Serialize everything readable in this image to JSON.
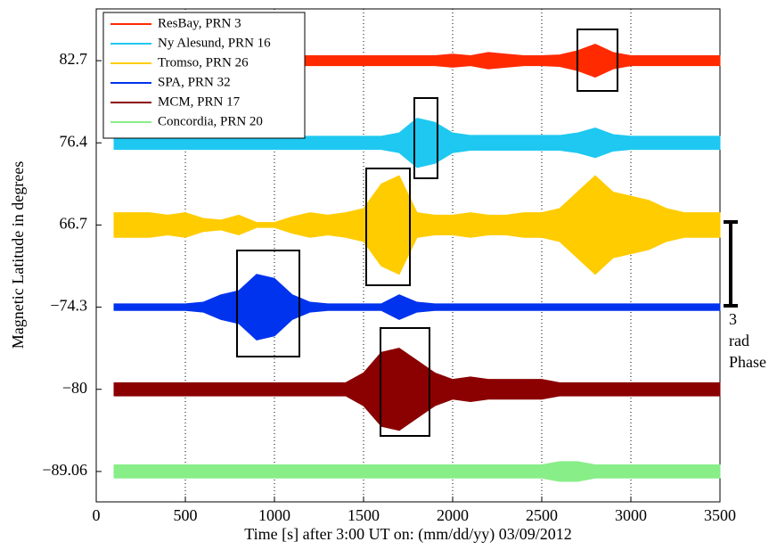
{
  "chart_data": {
    "type": "envelope",
    "xlabel": "Time [s] after 3:00 UT on: (mm/dd/yy) 03/09/2012",
    "ylabel": "Magnetic Latitude in degrees",
    "scale_bar_label": [
      "3",
      "rad",
      "Phase"
    ],
    "legend": "upper left",
    "xlim": [
      0,
      3500
    ],
    "xticks": [
      0,
      500,
      1000,
      1500,
      2000,
      2500,
      3000,
      3500
    ],
    "ylim": [
      0,
      6
    ],
    "yticks": [
      {
        "value": 0.37,
        "label": "−89.06"
      },
      {
        "value": 1.37,
        "label": "−80"
      },
      {
        "value": 2.37,
        "label": "−74.3"
      },
      {
        "value": 3.37,
        "label": "66.7"
      },
      {
        "value": 4.37,
        "label": "76.4"
      },
      {
        "value": 5.37,
        "label": "82.7"
      }
    ],
    "x": [
      100,
      200,
      300,
      400,
      500,
      600,
      700,
      800,
      900,
      1000,
      1100,
      1200,
      1300,
      1400,
      1500,
      1600,
      1700,
      1800,
      1900,
      2000,
      2100,
      2200,
      2300,
      2400,
      2500,
      2600,
      2700,
      2800,
      2900,
      3000,
      3100,
      3200,
      3300,
      3400,
      3500
    ],
    "series": [
      {
        "name": "ResBay, PRN 3",
        "color": "#ff2a00",
        "baseline": 5.37,
        "values": [
          0.05,
          0.05,
          0.05,
          0.05,
          0.05,
          0.05,
          0.05,
          0.05,
          0.05,
          0.05,
          0.06,
          0.06,
          0.06,
          0.06,
          0.06,
          0.06,
          0.06,
          0.06,
          0.06,
          0.08,
          0.06,
          0.1,
          0.08,
          0.06,
          0.06,
          0.07,
          0.12,
          0.2,
          0.1,
          0.06,
          0.06,
          0.06,
          0.06,
          0.06,
          0.06
        ]
      },
      {
        "name": "Ny Alesund, PRN 16",
        "color": "#1ec8f0",
        "baseline": 4.37,
        "values": [
          0.08,
          0.08,
          0.08,
          0.08,
          0.08,
          0.08,
          0.08,
          0.08,
          0.08,
          0.08,
          0.08,
          0.08,
          0.08,
          0.08,
          0.08,
          0.08,
          0.12,
          0.3,
          0.25,
          0.12,
          0.09,
          0.09,
          0.09,
          0.09,
          0.09,
          0.09,
          0.12,
          0.18,
          0.1,
          0.08,
          0.08,
          0.08,
          0.08,
          0.08,
          0.08
        ]
      },
      {
        "name": "Tromso, PRN 26",
        "color": "#ffcc00",
        "baseline": 3.37,
        "values": [
          0.15,
          0.15,
          0.15,
          0.12,
          0.15,
          0.08,
          0.06,
          0.12,
          0.03,
          0.03,
          0.1,
          0.15,
          0.12,
          0.15,
          0.2,
          0.5,
          0.6,
          0.15,
          0.12,
          0.12,
          0.15,
          0.12,
          0.12,
          0.15,
          0.15,
          0.2,
          0.4,
          0.6,
          0.4,
          0.35,
          0.3,
          0.2,
          0.15,
          0.15,
          0.15
        ]
      },
      {
        "name": "SPA, PRN 32",
        "color": "#0033ee",
        "baseline": 2.37,
        "values": [
          0.04,
          0.04,
          0.04,
          0.04,
          0.04,
          0.06,
          0.15,
          0.2,
          0.4,
          0.35,
          0.15,
          0.06,
          0.04,
          0.04,
          0.04,
          0.04,
          0.15,
          0.06,
          0.04,
          0.04,
          0.04,
          0.04,
          0.04,
          0.04,
          0.04,
          0.04,
          0.04,
          0.04,
          0.04,
          0.04,
          0.04,
          0.04,
          0.04,
          0.04,
          0.04
        ]
      },
      {
        "name": "MCM, PRN 17",
        "color": "#8b0000",
        "baseline": 1.37,
        "values": [
          0.08,
          0.08,
          0.08,
          0.08,
          0.08,
          0.08,
          0.08,
          0.08,
          0.08,
          0.08,
          0.08,
          0.08,
          0.08,
          0.08,
          0.2,
          0.45,
          0.5,
          0.35,
          0.2,
          0.12,
          0.15,
          0.12,
          0.12,
          0.12,
          0.12,
          0.08,
          0.08,
          0.08,
          0.08,
          0.08,
          0.08,
          0.08,
          0.08,
          0.08,
          0.08
        ]
      },
      {
        "name": "Concordia, PRN 20",
        "color": "#88ee88",
        "baseline": 0.37,
        "values": [
          0.08,
          0.08,
          0.08,
          0.08,
          0.08,
          0.08,
          0.08,
          0.08,
          0.08,
          0.08,
          0.08,
          0.08,
          0.08,
          0.08,
          0.08,
          0.08,
          0.08,
          0.08,
          0.08,
          0.08,
          0.08,
          0.08,
          0.08,
          0.08,
          0.08,
          0.12,
          0.12,
          0.08,
          0.08,
          0.08,
          0.08,
          0.08,
          0.08,
          0.08,
          0.08
        ]
      }
    ]
  }
}
